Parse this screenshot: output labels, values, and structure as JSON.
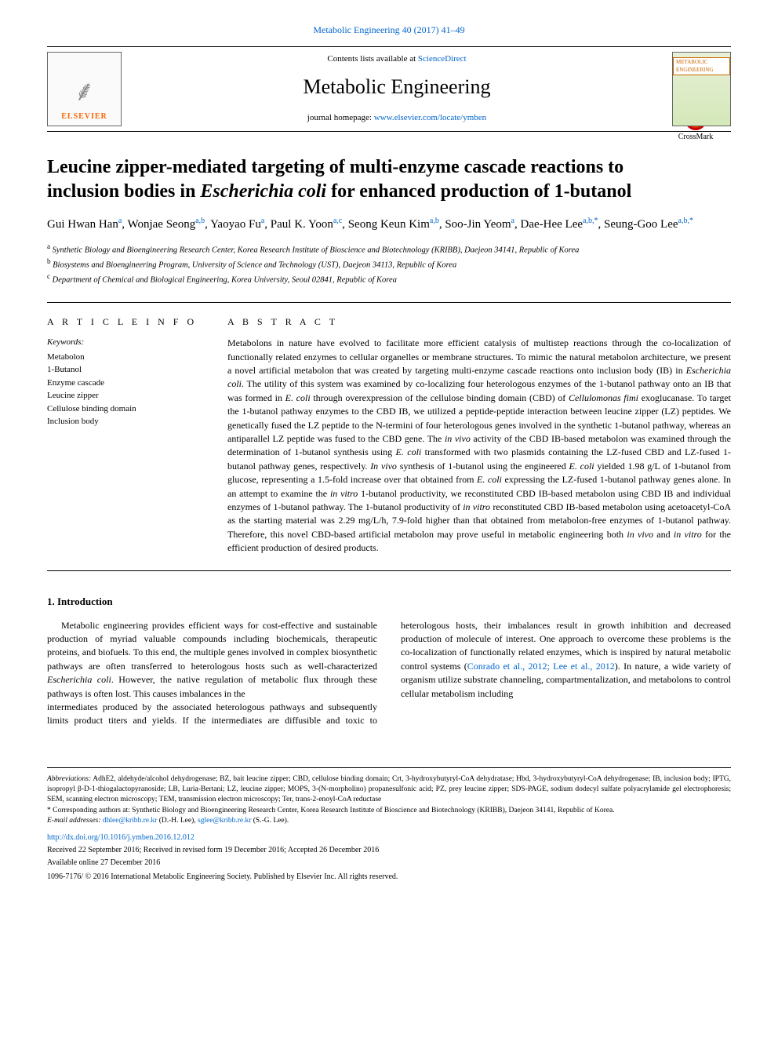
{
  "top_link": "Metabolic Engineering 40 (2017) 41–49",
  "masthead": {
    "contents_prefix": "Contents lists available at ",
    "contents_link": "ScienceDirect",
    "journal_name": "Metabolic Engineering",
    "homepage_prefix": "journal homepage: ",
    "homepage_url": "www.elsevier.com/locate/ymben",
    "elsevier_label": "ELSEVIER",
    "cover_label": "METABOLIC ENGINEERING"
  },
  "crossmark": "CrossMark",
  "title_part1": "Leucine zipper-mediated targeting of multi-enzyme cascade reactions to inclusion bodies in ",
  "title_italic": "Escherichia coli",
  "title_part2": " for enhanced production of 1-butanol",
  "authors_html": "Gui Hwan Han<sup>a</sup>, Wonjae Seong<sup>a,b</sup>, Yaoyao Fu<sup>a</sup>, Paul K. Yoon<sup>a,c</sup>, Seong Keun Kim<sup>a,b</sup>, Soo-Jin Yeom<sup>a</sup>, Dae-Hee Lee<sup>a,b,*</sup>, Seung-Goo Lee<sup>a,b,*</sup>",
  "affiliations": [
    {
      "sup": "a",
      "text": "Synthetic Biology and Bioengineering Research Center, Korea Research Institute of Bioscience and Biotechnology (KRIBB), Daejeon 34141, Republic of Korea"
    },
    {
      "sup": "b",
      "text": "Biosystems and Bioengineering Program, University of Science and Technology (UST), Daejeon 34113, Republic of Korea"
    },
    {
      "sup": "c",
      "text": "Department of Chemical and Biological Engineering, Korea University, Seoul 02841, Republic of Korea"
    }
  ],
  "article_info_heading": "A R T I C L E  I N F O",
  "keywords_label": "Keywords:",
  "keywords": [
    "Metabolon",
    "1-Butanol",
    "Enzyme cascade",
    "Leucine zipper",
    "Cellulose binding domain",
    "Inclusion body"
  ],
  "abstract_heading": "A B S T R A C T",
  "abstract": "Metabolons in nature have evolved to facilitate more efficient catalysis of multistep reactions through the co-localization of functionally related enzymes to cellular organelles or membrane structures. To mimic the natural metabolon architecture, we present a novel artificial metabolon that was created by targeting multi-enzyme cascade reactions onto inclusion body (IB) in Escherichia coli. The utility of this system was examined by co-localizing four heterologous enzymes of the 1-butanol pathway onto an IB that was formed in E. coli through overexpression of the cellulose binding domain (CBD) of Cellulomonas fimi exoglucanase. To target the 1-butanol pathway enzymes to the CBD IB, we utilized a peptide-peptide interaction between leucine zipper (LZ) peptides. We genetically fused the LZ peptide to the N-termini of four heterologous genes involved in the synthetic 1-butanol pathway, whereas an antiparallel LZ peptide was fused to the CBD gene. The in vivo activity of the CBD IB-based metabolon was examined through the determination of 1-butanol synthesis using E. coli transformed with two plasmids containing the LZ-fused CBD and LZ-fused 1-butanol pathway genes, respectively. In vivo synthesis of 1-butanol using the engineered E. coli yielded 1.98 g/L of 1-butanol from glucose, representing a 1.5-fold increase over that obtained from E. coli expressing the LZ-fused 1-butanol pathway genes alone. In an attempt to examine the in vitro 1-butanol productivity, we reconstituted CBD IB-based metabolon using CBD IB and individual enzymes of 1-butanol pathway. The 1-butanol productivity of in vitro reconstituted CBD IB-based metabolon using acetoacetyl-CoA as the starting material was 2.29 mg/L/h, 7.9-fold higher than that obtained from metabolon-free enzymes of 1-butanol pathway. Therefore, this novel CBD-based artificial metabolon may prove useful in metabolic engineering both in vivo and in vitro for the efficient production of desired products.",
  "intro_heading": "1. Introduction",
  "intro_p1": "Metabolic engineering provides efficient ways for cost-effective and sustainable production of myriad valuable compounds including biochemicals, therapeutic proteins, and biofuels. To this end, the multiple genes involved in complex biosynthetic pathways are often transferred to heterologous hosts such as well-characterized Escherichia coli. However, the native regulation of metabolic flux through these pathways is often lost. This causes imbalances in the",
  "intro_p2_a": "intermediates produced by the associated heterologous pathways and subsequently limits product titers and yields. If the intermediates are diffusible and toxic to heterologous hosts, their imbalances result in growth inhibition and decreased production of molecule of interest. One approach to overcome these problems is the co-localization of functionally related enzymes, which is inspired by natural metabolic control systems (",
  "intro_p2_cite": "Conrado et al., 2012; Lee et al., 2012",
  "intro_p2_b": "). In nature, a wide variety of organism utilize substrate channeling, compartmentalization, and metabolons to control cellular metabolism including",
  "footnotes": {
    "abbrev_label": "Abbreviations:",
    "abbrev_text": " AdhE2, aldehyde/alcohol dehydrogenase; BZ, bait leucine zipper; CBD, cellulose binding domain; Crt, 3-hydroxybutyryl-CoA dehydratase; Hbd, 3-hydroxybutyryl-CoA dehydrogenase; IB, inclusion body; IPTG, isopropyl β-D-1-thiogalactopyranoside; LB, Luria-Bertani; LZ, leucine zipper; MOPS, 3-(N-morpholino) propanesulfonic acid; PZ, prey leucine zipper; SDS-PAGE, sodium dodecyl sulfate polyacrylamide gel electrophoresis; SEM, scanning electron microscopy; TEM, transmission electron microscopy; Ter, trans-2-enoyl-CoA reductase",
    "corresp": "* Corresponding authors at: Synthetic Biology and Bioengineering Research Center, Korea Research Institute of Bioscience and Biotechnology (KRIBB), Daejeon 34141, Republic of Korea.",
    "email_label": "E-mail addresses:",
    "email1": "dhlee@kribb.re.kr",
    "email1_name": " (D.-H. Lee), ",
    "email2": "sglee@kribb.re.kr",
    "email2_name": " (S.-G. Lee)."
  },
  "doi": "http://dx.doi.org/10.1016/j.ymben.2016.12.012",
  "history": "Received 22 September 2016; Received in revised form 19 December 2016; Accepted 26 December 2016",
  "available": "Available online 27 December 2016",
  "copyright": "1096-7176/ © 2016 International Metabolic Engineering Society. Published by Elsevier Inc. All rights reserved."
}
